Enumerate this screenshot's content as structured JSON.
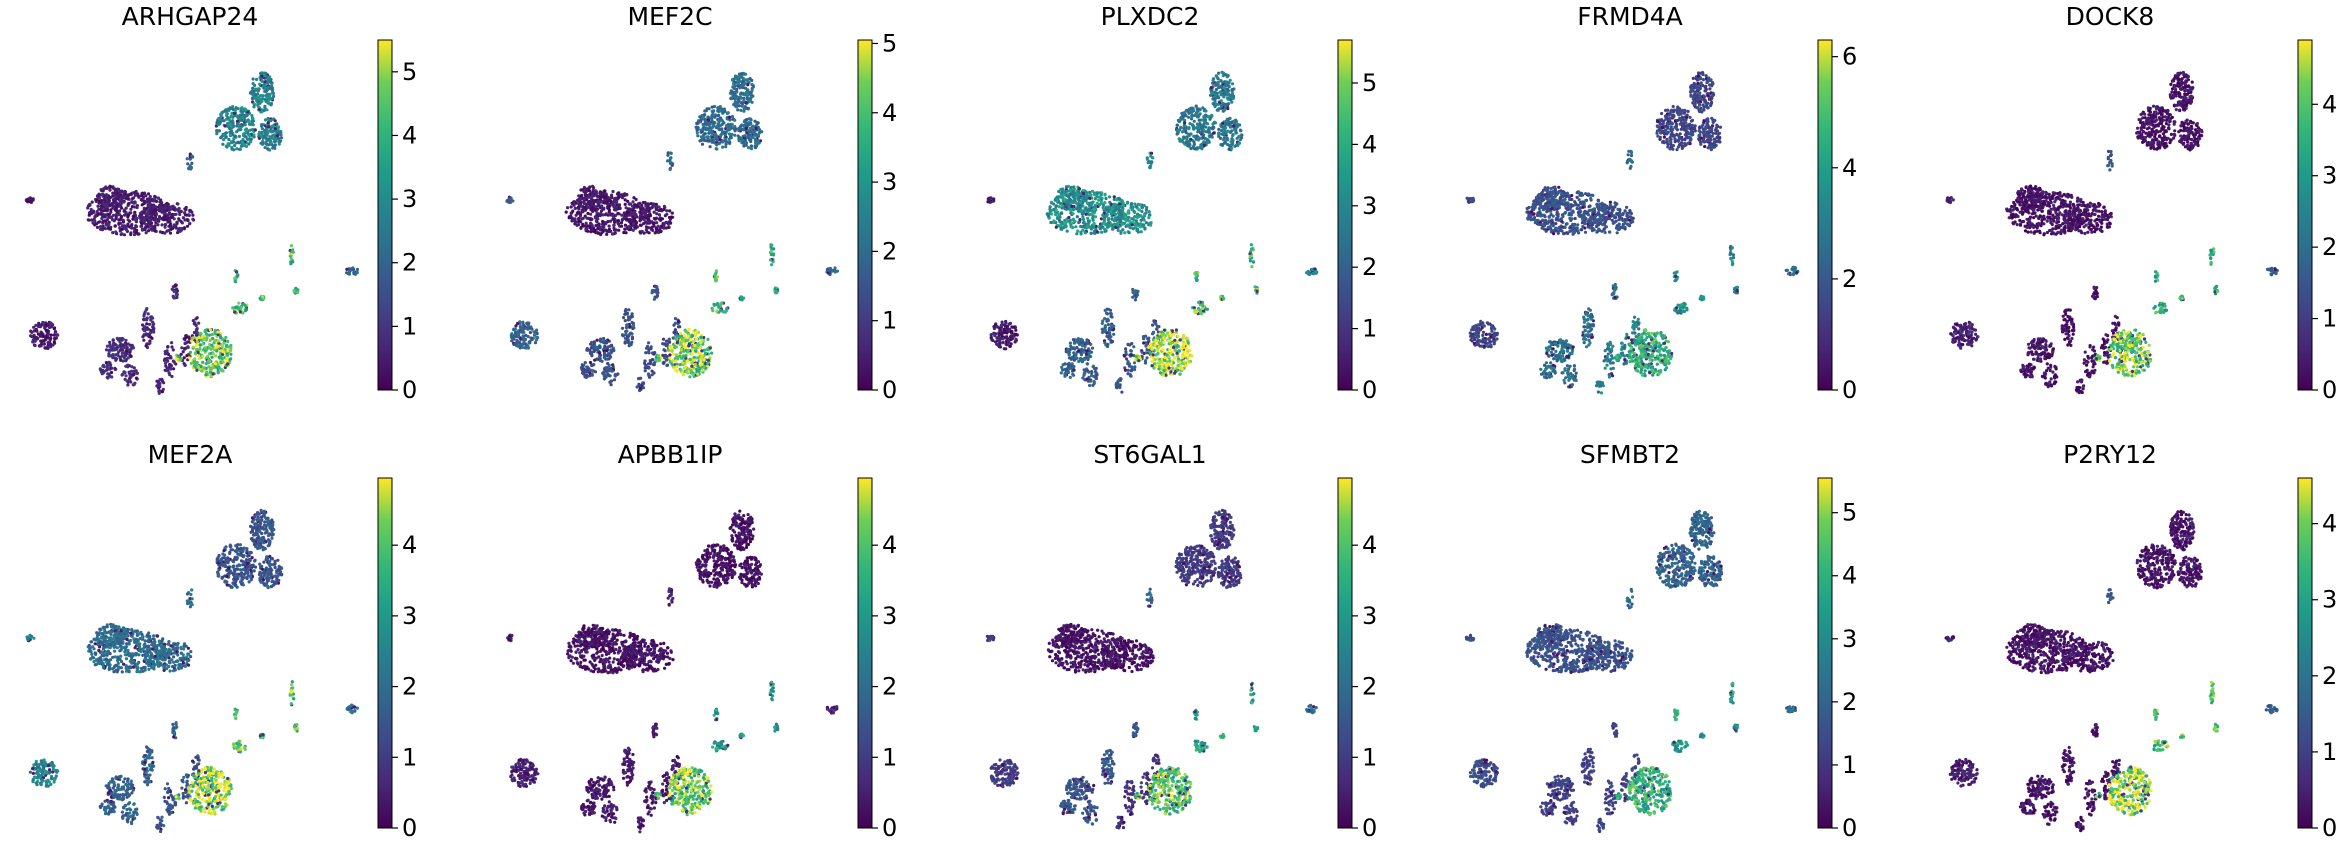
{
  "figure": {
    "kind": "UMAP gene expression feature plots",
    "colormap": "viridis"
  },
  "chart_data": [
    {
      "type": "scatter",
      "title": "ARHGAP24",
      "colorbar": {
        "min": 0,
        "max": 5.5,
        "ticks": [
          0,
          1,
          2,
          3,
          4,
          5
        ]
      },
      "cluster_expression": {
        "top_right": 2.8,
        "central": 0.5,
        "left_small": 0.5,
        "left_lower": 0.8,
        "branch": 0.6,
        "round": 4.6,
        "mid_small": 4.2,
        "right_edge": 2.0
      }
    },
    {
      "type": "scatter",
      "title": "MEF2C",
      "colorbar": {
        "min": 0,
        "max": 5.05,
        "ticks": [
          0,
          1,
          2,
          3,
          4,
          5
        ]
      },
      "cluster_expression": {
        "top_right": 2.0,
        "central": 0.4,
        "left_small": 1.8,
        "left_lower": 1.5,
        "branch": 1.3,
        "round": 4.4,
        "mid_small": 3.8,
        "right_edge": 1.8
      }
    },
    {
      "type": "scatter",
      "title": "PLXDC2",
      "colorbar": {
        "min": 0,
        "max": 5.7,
        "ticks": [
          0,
          1,
          2,
          3,
          4,
          5
        ]
      },
      "cluster_expression": {
        "top_right": 2.6,
        "central": 3.2,
        "left_small": 0.5,
        "left_lower": 2.0,
        "branch": 1.8,
        "round": 5.3,
        "mid_small": 4.5,
        "right_edge": 3.0
      }
    },
    {
      "type": "scatter",
      "title": "FRMD4A",
      "colorbar": {
        "min": 0,
        "max": 6.3,
        "ticks": [
          0,
          2,
          4,
          6
        ]
      },
      "cluster_expression": {
        "top_right": 1.5,
        "central": 1.8,
        "left_small": 1.5,
        "left_lower": 2.6,
        "branch": 3.0,
        "round": 4.5,
        "mid_small": 3.5,
        "right_edge": 2.5
      }
    },
    {
      "type": "scatter",
      "title": "DOCK8",
      "colorbar": {
        "min": 0,
        "max": 4.9,
        "ticks": [
          0,
          1,
          2,
          3,
          4
        ]
      },
      "cluster_expression": {
        "top_right": 0.3,
        "central": 0.3,
        "left_small": 0.6,
        "left_lower": 0.3,
        "branch": 0.3,
        "round": 4.2,
        "mid_small": 3.5,
        "right_edge": 1.5
      }
    },
    {
      "type": "scatter",
      "title": "MEF2A",
      "colorbar": {
        "min": 0,
        "max": 4.95,
        "ticks": [
          0,
          1,
          2,
          3,
          4
        ]
      },
      "cluster_expression": {
        "top_right": 1.5,
        "central": 2.0,
        "left_small": 2.5,
        "left_lower": 1.8,
        "branch": 1.5,
        "round": 4.5,
        "mid_small": 4.0,
        "right_edge": 2.0
      }
    },
    {
      "type": "scatter",
      "title": "APBB1IP",
      "colorbar": {
        "min": 0,
        "max": 4.95,
        "ticks": [
          0,
          1,
          2,
          3,
          4
        ]
      },
      "cluster_expression": {
        "top_right": 0.3,
        "central": 0.3,
        "left_small": 0.5,
        "left_lower": 0.4,
        "branch": 0.4,
        "round": 4.2,
        "mid_small": 3.0,
        "right_edge": 0.5
      }
    },
    {
      "type": "scatter",
      "title": "ST6GAL1",
      "colorbar": {
        "min": 0,
        "max": 4.95,
        "ticks": [
          0,
          1,
          2,
          3,
          4
        ]
      },
      "cluster_expression": {
        "top_right": 1.0,
        "central": 0.3,
        "left_small": 1.0,
        "left_lower": 1.5,
        "branch": 0.8,
        "round": 4.0,
        "mid_small": 3.2,
        "right_edge": 2.0
      }
    },
    {
      "type": "scatter",
      "title": "SFMBT2",
      "colorbar": {
        "min": 0,
        "max": 5.55,
        "ticks": [
          0,
          1,
          2,
          3,
          4,
          5
        ]
      },
      "cluster_expression": {
        "top_right": 2.0,
        "central": 1.6,
        "left_small": 1.5,
        "left_lower": 1.2,
        "branch": 1.3,
        "round": 4.0,
        "mid_small": 3.5,
        "right_edge": 2.2
      }
    },
    {
      "type": "scatter",
      "title": "P2RY12",
      "colorbar": {
        "min": 0,
        "max": 4.6,
        "ticks": [
          0,
          1,
          2,
          3,
          4
        ]
      },
      "cluster_expression": {
        "top_right": 0.3,
        "central": 0.3,
        "left_small": 0.5,
        "left_lower": 0.3,
        "branch": 0.3,
        "round": 4.1,
        "mid_small": 3.6,
        "right_edge": 1.5
      }
    }
  ]
}
